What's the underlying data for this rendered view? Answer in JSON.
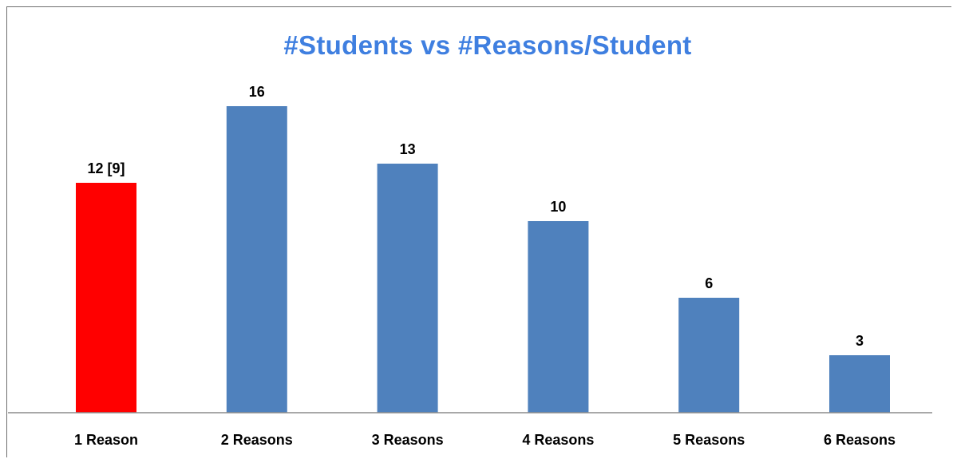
{
  "chart_data": {
    "type": "bar",
    "title": "#Students vs #Reasons/Student",
    "categories": [
      "1 Reason",
      "2 Reasons",
      "3 Reasons",
      "4 Reasons",
      "5 Reasons",
      "6 Reasons"
    ],
    "values": [
      12,
      16,
      13,
      10,
      6,
      3
    ],
    "data_labels": [
      "12 [9]",
      "16",
      "13",
      "10",
      "6",
      "3"
    ],
    "bar_colors": [
      "#ff0000",
      "#4f81bd",
      "#4f81bd",
      "#4f81bd",
      "#4f81bd",
      "#4f81bd"
    ],
    "title_color": "#3f7fe0",
    "axis_color": "#8c8c8c",
    "xlabel": "",
    "ylabel": "",
    "ylim": [
      0,
      16
    ],
    "grid": false,
    "legend": "none"
  }
}
